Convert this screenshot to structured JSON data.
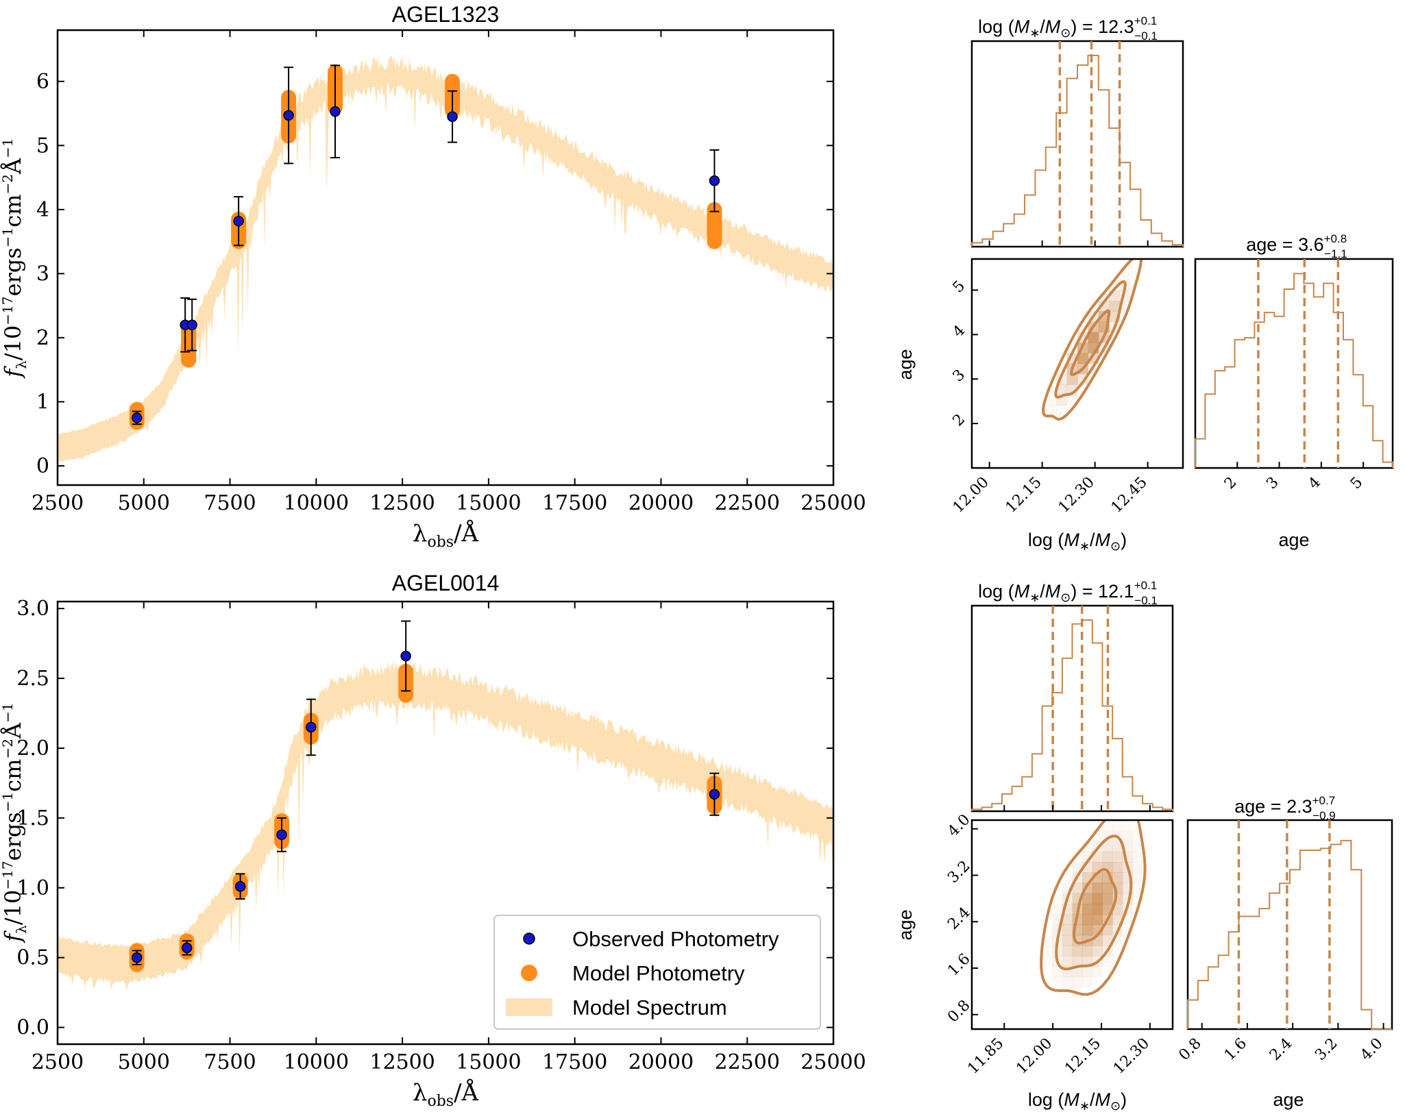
{
  "figure": {
    "colors": {
      "model_spectrum": "#fde1b4",
      "model_photometry": "#ff8c1a",
      "observed": "#1515c8",
      "corner": "#c8864a",
      "axis": "#000000"
    }
  },
  "chart_data": [
    {
      "type": "sed",
      "id": "sed1",
      "title": "AGEL1323",
      "xlabel": "λ_obs/Å",
      "ylabel": "f_λ/10^-17 ergs^-1 cm^-2 Å^-1",
      "xlim": [
        2500,
        25000
      ],
      "ylim": [
        -0.3,
        6.8
      ],
      "xticks": [
        2500,
        5000,
        7500,
        10000,
        12500,
        15000,
        17500,
        20000,
        22500,
        25000
      ],
      "yticks": [
        0,
        1,
        2,
        3,
        4,
        5,
        6
      ],
      "spectrum_center": [
        [
          2500,
          0.28
        ],
        [
          3200,
          0.35
        ],
        [
          4000,
          0.52
        ],
        [
          4600,
          0.66
        ],
        [
          5000,
          0.8
        ],
        [
          5500,
          1.1
        ],
        [
          6000,
          1.6
        ],
        [
          6500,
          2.1
        ],
        [
          7000,
          2.7
        ],
        [
          7500,
          3.2
        ],
        [
          8000,
          3.6
        ],
        [
          8500,
          4.5
        ],
        [
          9000,
          5.1
        ],
        [
          9500,
          5.5
        ],
        [
          10000,
          5.75
        ],
        [
          10500,
          5.9
        ],
        [
          11000,
          5.98
        ],
        [
          11500,
          6.05
        ],
        [
          12000,
          6.08
        ],
        [
          12500,
          6.06
        ],
        [
          13000,
          6.0
        ],
        [
          14000,
          5.8
        ],
        [
          15000,
          5.55
        ],
        [
          16000,
          5.25
        ],
        [
          17000,
          4.95
        ],
        [
          18000,
          4.6
        ],
        [
          19000,
          4.3
        ],
        [
          20000,
          4.05
        ],
        [
          21000,
          3.8
        ],
        [
          22000,
          3.6
        ],
        [
          23000,
          3.35
        ],
        [
          24000,
          3.15
        ],
        [
          25000,
          2.95
        ]
      ],
      "spectrum_halfwidth": 0.22,
      "observed": [
        {
          "x": 4800,
          "y": 0.75,
          "err": 0.1
        },
        {
          "x": 6200,
          "y": 2.2,
          "err": 0.42
        },
        {
          "x": 6400,
          "y": 2.2,
          "err": 0.4
        },
        {
          "x": 7750,
          "y": 3.82,
          "err": 0.38
        },
        {
          "x": 9200,
          "y": 5.47,
          "err": 0.75
        },
        {
          "x": 10550,
          "y": 5.53,
          "err": 0.72
        },
        {
          "x": 13950,
          "y": 5.45,
          "err": 0.4
        },
        {
          "x": 21550,
          "y": 4.45,
          "err": 0.48
        }
      ],
      "model": [
        {
          "x": 4800,
          "lo": 0.68,
          "hi": 0.88
        },
        {
          "x": 6300,
          "lo": 1.65,
          "hi": 2.15
        },
        {
          "x": 7750,
          "lo": 3.5,
          "hi": 3.85
        },
        {
          "x": 9200,
          "lo": 5.15,
          "hi": 5.75
        },
        {
          "x": 10550,
          "lo": 5.6,
          "hi": 6.15
        },
        {
          "x": 13950,
          "lo": 5.55,
          "hi": 6.0
        },
        {
          "x": 21550,
          "lo": 3.5,
          "hi": 4.0
        }
      ]
    },
    {
      "type": "sed",
      "id": "sed2",
      "title": "AGEL0014",
      "xlabel": "λ_obs/Å",
      "ylabel": "f_λ/10^-17 ergs^-1 cm^-2 Å^-1",
      "xlim": [
        2500,
        25000
      ],
      "ylim": [
        -0.12,
        3.05
      ],
      "xticks": [
        2500,
        5000,
        7500,
        10000,
        12500,
        15000,
        17500,
        20000,
        22500,
        25000
      ],
      "yticks": [
        0.0,
        0.5,
        1.0,
        1.5,
        2.0,
        2.5,
        3.0
      ],
      "spectrum_center": [
        [
          2500,
          0.52
        ],
        [
          3500,
          0.47
        ],
        [
          4500,
          0.45
        ],
        [
          5500,
          0.5
        ],
        [
          6200,
          0.55
        ],
        [
          6800,
          0.72
        ],
        [
          7500,
          0.95
        ],
        [
          8200,
          1.2
        ],
        [
          8800,
          1.45
        ],
        [
          9300,
          1.9
        ],
        [
          9800,
          2.2
        ],
        [
          10500,
          2.35
        ],
        [
          11500,
          2.43
        ],
        [
          12500,
          2.45
        ],
        [
          13500,
          2.42
        ],
        [
          14500,
          2.35
        ],
        [
          15500,
          2.28
        ],
        [
          16500,
          2.2
        ],
        [
          17500,
          2.12
        ],
        [
          18500,
          2.03
        ],
        [
          19500,
          1.94
        ],
        [
          20500,
          1.86
        ],
        [
          21500,
          1.77
        ],
        [
          22500,
          1.68
        ],
        [
          23500,
          1.58
        ],
        [
          24500,
          1.49
        ],
        [
          25000,
          1.45
        ]
      ],
      "spectrum_halfwidth": 0.13,
      "observed": [
        {
          "x": 4800,
          "y": 0.5,
          "err": 0.05
        },
        {
          "x": 6250,
          "y": 0.57,
          "err": 0.05
        },
        {
          "x": 7800,
          "y": 1.01,
          "err": 0.09
        },
        {
          "x": 9000,
          "y": 1.38,
          "err": 0.12
        },
        {
          "x": 9850,
          "y": 2.15,
          "err": 0.2
        },
        {
          "x": 12600,
          "y": 2.66,
          "err": 0.25
        },
        {
          "x": 21550,
          "y": 1.67,
          "err": 0.15
        }
      ],
      "model": [
        {
          "x": 4800,
          "lo": 0.45,
          "hi": 0.55
        },
        {
          "x": 6250,
          "lo": 0.54,
          "hi": 0.62
        },
        {
          "x": 7800,
          "lo": 0.97,
          "hi": 1.05
        },
        {
          "x": 9000,
          "lo": 1.33,
          "hi": 1.48
        },
        {
          "x": 9850,
          "lo": 2.08,
          "hi": 2.2
        },
        {
          "x": 12600,
          "lo": 2.38,
          "hi": 2.55
        },
        {
          "x": 21550,
          "lo": 1.58,
          "hi": 1.75
        }
      ],
      "legend": [
        "Observed Photometry",
        "Model Photometry",
        "Model Spectrum"
      ]
    },
    {
      "type": "corner",
      "id": "corner1",
      "mass_title": {
        "prefix": "log (M",
        "sub": "*",
        "mid": "/M",
        "sun": "⊙",
        "tail": ") = 12.3",
        "up": "+0.1",
        "down": "−0.1"
      },
      "age_title": {
        "text": "age = 3.6",
        "up": "+0.8",
        "down": "−1.1"
      },
      "mass_range": [
        11.95,
        12.55
      ],
      "mass_ticks": [
        "12.00",
        "12.15",
        "12.30",
        "12.45"
      ],
      "mass_tick_vals": [
        12.0,
        12.15,
        12.3,
        12.45
      ],
      "mass_quantiles": [
        12.2,
        12.29,
        12.37
      ],
      "mass_hist": [
        0.02,
        0.04,
        0.08,
        0.12,
        0.17,
        0.27,
        0.4,
        0.52,
        0.7,
        0.88,
        0.95,
        1.0,
        0.82,
        0.62,
        0.44,
        0.3,
        0.14,
        0.07,
        0.03,
        0.01
      ],
      "age_range": [
        1.0,
        5.7
      ],
      "age_ticks": [
        "2",
        "3",
        "4",
        "5"
      ],
      "age_tick_vals": [
        2,
        3,
        4,
        5
      ],
      "age_quantiles": [
        2.5,
        3.6,
        4.4
      ],
      "age_hist": [
        0.15,
        0.38,
        0.5,
        0.52,
        0.66,
        0.67,
        0.75,
        0.8,
        0.78,
        0.92,
        1.0,
        0.95,
        0.88,
        0.95,
        0.8,
        0.66,
        0.48,
        0.32,
        0.14,
        0.03
      ],
      "contour_peak": [
        12.29,
        3.8
      ],
      "contour_cov": [
        [
          0.0025,
          0.03
        ],
        [
          0.03,
          0.45
        ]
      ],
      "xlabel": {
        "prefix": "log (M",
        "sub": "*",
        "mid": "/M",
        "sun": "⊙",
        "tail": ")"
      },
      "ylabel": "age"
    },
    {
      "type": "corner",
      "id": "corner2",
      "mass_title": {
        "prefix": "log (M",
        "sub": "*",
        "mid": "/M",
        "sun": "⊙",
        "tail": ") = 12.1",
        "up": "+0.1",
        "down": "−0.1"
      },
      "age_title": {
        "text": "age = 2.3",
        "up": "+0.7",
        "down": "−0.9"
      },
      "mass_range": [
        11.75,
        12.37
      ],
      "mass_ticks": [
        "11.85",
        "12.00",
        "12.15",
        "12.30"
      ],
      "mass_tick_vals": [
        11.85,
        12.0,
        12.15,
        12.3
      ],
      "mass_quantiles": [
        12.0,
        12.09,
        12.17
      ],
      "mass_hist": [
        0.01,
        0.02,
        0.04,
        0.09,
        0.13,
        0.18,
        0.3,
        0.55,
        0.62,
        0.8,
        0.98,
        1.0,
        0.88,
        0.55,
        0.38,
        0.18,
        0.08,
        0.04,
        0.02,
        0.01
      ],
      "age_range": [
        0.55,
        4.15
      ],
      "age_ticks": [
        "0.8",
        "1.6",
        "2.4",
        "3.2",
        "4.0"
      ],
      "age_tick_vals": [
        0.8,
        1.6,
        2.4,
        3.2,
        4.0
      ],
      "age_quantiles": [
        1.45,
        2.3,
        3.05
      ],
      "age_hist": [
        0.15,
        0.25,
        0.32,
        0.38,
        0.5,
        0.58,
        0.58,
        0.62,
        0.7,
        0.75,
        0.82,
        0.92,
        0.92,
        0.93,
        0.95,
        0.97,
        0.82,
        0.1,
        0.0,
        0.0
      ],
      "contour_peak": [
        12.13,
        2.65
      ],
      "contour_cov": [
        [
          0.0035,
          0.018
        ],
        [
          0.018,
          0.35
        ]
      ],
      "xlabel": {
        "prefix": "log (M",
        "sub": "*",
        "mid": "/M",
        "sun": "⊙",
        "tail": ")"
      },
      "ylabel": "age"
    }
  ]
}
